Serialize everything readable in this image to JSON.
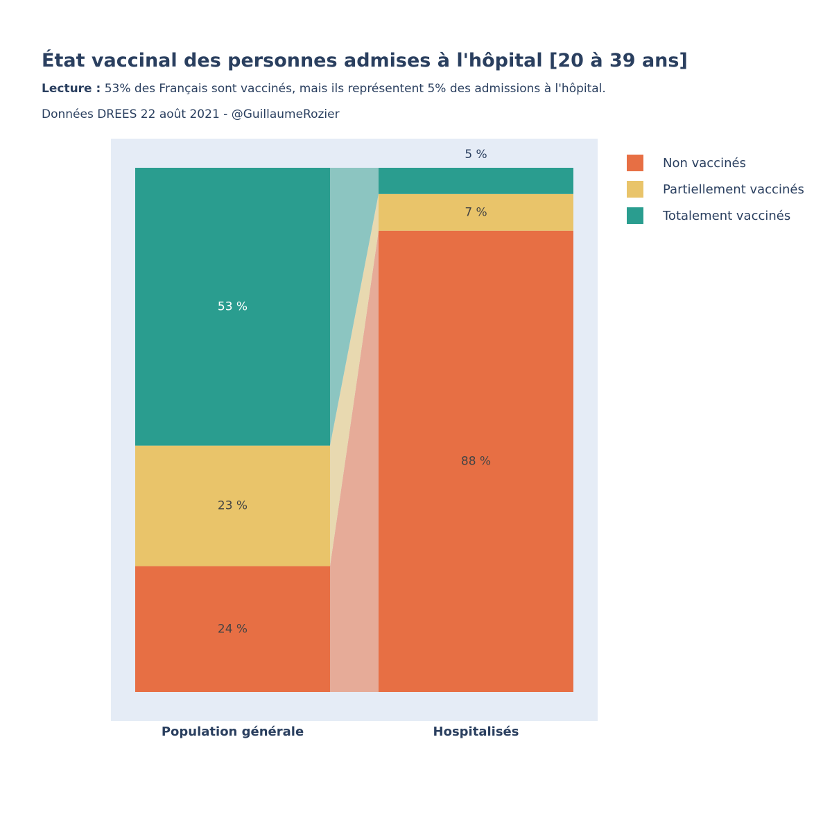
{
  "title": "État vaccinal des personnes admises à l'hôpital [20 à 39 ans]",
  "subtitle": {
    "bold": "Lecture :",
    "text": " 53% des Français sont vaccinés, mais ils représentent 5% des admissions à l'hôpital."
  },
  "source": "Données DREES 22 août 2021 - @GuillaumeRozier",
  "colors": {
    "non": "#e76f44",
    "partiel": "#e9c46a",
    "total": "#2a9d8f",
    "plot_bg": "#e5ecf6"
  },
  "chart_data": {
    "type": "bar",
    "stacked": true,
    "categories": [
      "Population générale",
      "Hospitalisés"
    ],
    "series": [
      {
        "name": "Non vaccinés",
        "values": [
          24,
          88
        ],
        "labels": [
          "24 %",
          "88 %"
        ]
      },
      {
        "name": "Partiellement vaccinés",
        "values": [
          23,
          7
        ],
        "labels": [
          "23 %",
          "7 %"
        ]
      },
      {
        "name": "Totalement vaccinés",
        "values": [
          53,
          5
        ],
        "labels": [
          "53 %",
          "5 %"
        ]
      }
    ],
    "ylim": [
      0,
      100
    ],
    "legend_position": "right"
  }
}
